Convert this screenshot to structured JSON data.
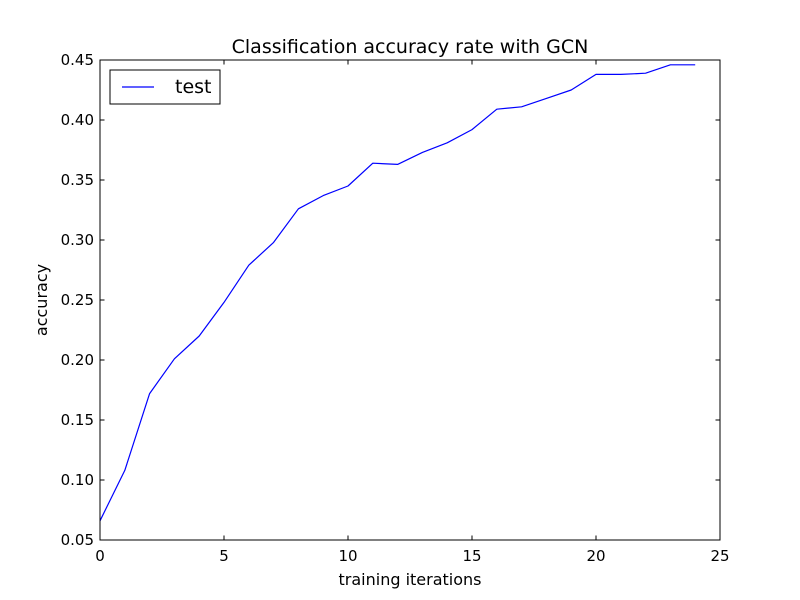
{
  "chart_data": {
    "type": "line",
    "title": "Classification accuracy rate with GCN",
    "xlabel": "training iterations",
    "ylabel": "accuracy",
    "xlim": [
      0,
      25
    ],
    "ylim": [
      0.05,
      0.45
    ],
    "xticks": [
      0,
      5,
      10,
      15,
      20,
      25
    ],
    "xtick_labels": [
      "0",
      "5",
      "10",
      "15",
      "20",
      "25"
    ],
    "yticks": [
      0.05,
      0.1,
      0.15,
      0.2,
      0.25,
      0.3,
      0.35,
      0.4,
      0.45
    ],
    "ytick_labels": [
      "0.05",
      "0.10",
      "0.15",
      "0.20",
      "0.25",
      "0.30",
      "0.35",
      "0.40",
      "0.45"
    ],
    "grid": false,
    "legend_position": "top-left",
    "series": [
      {
        "name": "test",
        "color": "#0000ff",
        "x": [
          0,
          1,
          2,
          3,
          4,
          5,
          6,
          7,
          8,
          9,
          10,
          11,
          12,
          13,
          14,
          15,
          16,
          17,
          18,
          19,
          20,
          21,
          22,
          23,
          24
        ],
        "y": [
          0.066,
          0.108,
          0.172,
          0.201,
          0.22,
          0.248,
          0.279,
          0.298,
          0.326,
          0.337,
          0.345,
          0.364,
          0.363,
          0.373,
          0.381,
          0.392,
          0.409,
          0.411,
          0.418,
          0.425,
          0.438,
          0.438,
          0.439,
          0.446,
          0.446
        ]
      }
    ]
  }
}
